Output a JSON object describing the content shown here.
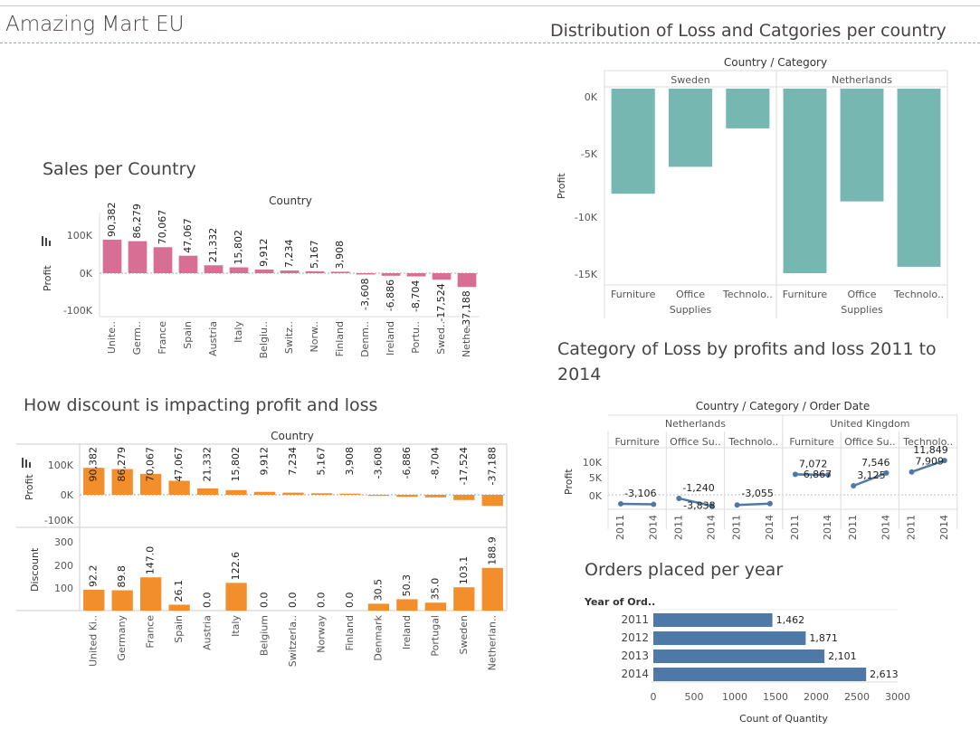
{
  "dashboard": {
    "title": "Amazing Mart EU"
  },
  "colors": {
    "sales": "#d66f93",
    "profit_loss": "#f28e2b",
    "distribution": "#76b7b2",
    "trend": "#4e79a7",
    "orders": "#4e79a7"
  },
  "sales_chart": {
    "title": "Sales per Country",
    "header": "Country",
    "ylabel": "Profit",
    "yticks": [
      "100K",
      "0K",
      "-100K"
    ],
    "sort_icon": "sort-descending-icon"
  },
  "discount_chart": {
    "title": "How discount is impacting profit and loss",
    "header": "Country",
    "profit_label": "Profit",
    "discount_label": "Discount",
    "profit_ticks": [
      "100K",
      "0K",
      "-100K"
    ],
    "discount_ticks": [
      "300",
      "200",
      "100"
    ],
    "sort_icon": "sort-descending-icon"
  },
  "distribution_chart": {
    "title": "Distribution of Loss and Catgories per country",
    "header": "Country  /  Category",
    "ylabel": "Profit",
    "yticks": [
      "0K",
      "-5K",
      "-10K",
      "-15K"
    ]
  },
  "trend_chart": {
    "title_line1": "Category of Loss by profits and loss 2011 to",
    "title_line2": "2014",
    "header": "Country  /  Category  /  Order Date",
    "ylabel": "Profit",
    "yticks": [
      "10K",
      "5K",
      "0K"
    ]
  },
  "orders_chart": {
    "title": "Orders placed per year",
    "row_header": "Year of Ord..",
    "xlabel": "Count of Quantity",
    "xticks": [
      "0",
      "500",
      "1000",
      "1500",
      "2000",
      "2500",
      "3000"
    ]
  },
  "chart_data": [
    {
      "type": "bar",
      "title": "Sales per Country",
      "xlabel": "Country",
      "ylabel": "Profit",
      "ylim": [
        -130000,
        130000
      ],
      "categories": [
        "Unite..",
        "Germ..",
        "France",
        "Spain",
        "Austria",
        "Italy",
        "Belgiu..",
        "Switz..",
        "Norw..",
        "Finland",
        "Denm..",
        "Ireland",
        "Portu..",
        "Swed..",
        "Nethe.."
      ],
      "values": [
        90382,
        86279,
        70067,
        47067,
        21332,
        15802,
        9912,
        7234,
        5167,
        3908,
        -3608,
        -6886,
        -8704,
        -17524,
        -37188
      ],
      "labels": [
        "90,382",
        "86,279",
        "70,067",
        "47,067",
        "21,332",
        "15,802",
        "9,912",
        "7,234",
        "5,167",
        "3,908",
        "-3,608",
        "-6,886",
        "-8,704",
        "-17,524",
        "-37,188"
      ]
    },
    {
      "type": "bar",
      "title": "How discount is impacting profit and loss",
      "xlabel": "Country",
      "categories": [
        "United Ki..",
        "Germany",
        "France",
        "Spain",
        "Austria",
        "Italy",
        "Belgium",
        "Switzerla..",
        "Norway",
        "Finland",
        "Denmark",
        "Ireland",
        "Portugal",
        "Sweden",
        "Netherlan.."
      ],
      "series": [
        {
          "name": "Profit",
          "ylim": [
            -100000,
            120000
          ],
          "values": [
            90382,
            86279,
            70067,
            47067,
            21332,
            15802,
            9912,
            7234,
            5167,
            3908,
            -3608,
            -6886,
            -8704,
            -17524,
            -37188
          ],
          "labels": [
            "90,382",
            "86,279",
            "70,067",
            "47,067",
            "21,332",
            "15,802",
            "9,912",
            "7,234",
            "5,167",
            "3,908",
            "-3,608",
            "-6,886",
            "-8,704",
            "-17,524",
            "-37,188"
          ]
        },
        {
          "name": "Discount",
          "ylim": [
            0,
            330
          ],
          "values": [
            92.2,
            89.8,
            147.0,
            26.1,
            0.0,
            122.6,
            0.0,
            0.0,
            0.0,
            0.0,
            30.5,
            50.3,
            35.0,
            103.1,
            188.9
          ],
          "labels": [
            "92.2",
            "89.8",
            "147.0",
            "26.1",
            "0.0",
            "122.6",
            "0.0",
            "0.0",
            "0.0",
            "0.0",
            "30.5",
            "50.3",
            "35.0",
            "103.1",
            "188.9"
          ]
        }
      ]
    },
    {
      "type": "bar",
      "title": "Distribution of Loss and Catgories per country",
      "ylabel": "Profit",
      "ylim": [
        -15500,
        800
      ],
      "groups": [
        {
          "name": "Sweden",
          "categories": [
            "Furniture",
            "Office Supplies",
            "Technolo.."
          ],
          "values": [
            -8200,
            -6100,
            -3100
          ]
        },
        {
          "name": "Netherlands",
          "categories": [
            "Furniture",
            "Office Supplies",
            "Technolo.."
          ],
          "values": [
            -14400,
            -8800,
            -13900
          ]
        }
      ]
    },
    {
      "type": "line",
      "title": "Category of Loss by profits and loss 2011 to 2014",
      "ylabel": "Profit",
      "ylim": [
        -6000,
        13000
      ],
      "x": [
        "2011",
        "2014"
      ],
      "panels": [
        {
          "country": "Netherlands",
          "category": "Furniture",
          "values": [
            -3106,
            -3300
          ],
          "labels": [
            "-3,106",
            ""
          ]
        },
        {
          "country": "Netherlands",
          "category": "Office Su..",
          "values": [
            -1240,
            -3838
          ],
          "labels": [
            "-1,240",
            "-3,838"
          ]
        },
        {
          "country": "Netherlands",
          "category": "Technolo..",
          "values": [
            -3500,
            -3055
          ],
          "labels": [
            "",
            "-3,055"
          ]
        },
        {
          "country": "United Kingdom",
          "category": "Furniture",
          "values": [
            7072,
            6867
          ],
          "labels": [
            "7,072",
            "6,867"
          ]
        },
        {
          "country": "United Kingdom",
          "category": "Office Su..",
          "values": [
            3125,
            7546
          ],
          "labels": [
            "3,125",
            "7,546"
          ]
        },
        {
          "country": "United Kingdom",
          "category": "Technolo..",
          "values": [
            7909,
            11849
          ],
          "labels": [
            "7,909",
            "11,849"
          ]
        }
      ]
    },
    {
      "type": "bar",
      "title": "Orders placed per year",
      "ylabel": "Year of Ord..",
      "xlabel": "Count of Quantity",
      "xlim": [
        0,
        3000
      ],
      "categories": [
        "2011",
        "2012",
        "2013",
        "2014"
      ],
      "values": [
        1462,
        1871,
        2101,
        2613
      ],
      "labels": [
        "1,462",
        "1,871",
        "2,101",
        "2,613"
      ]
    }
  ]
}
